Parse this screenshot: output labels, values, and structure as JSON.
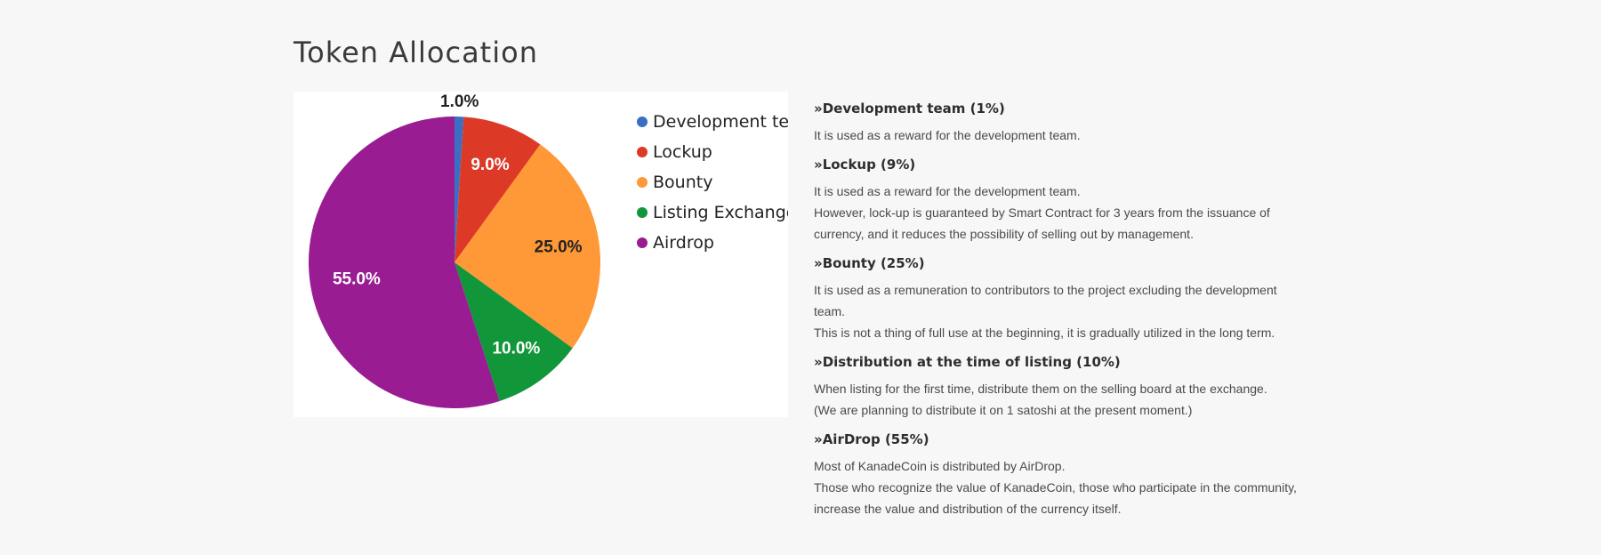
{
  "page": {
    "title": "Token Allocation"
  },
  "chart_data": {
    "type": "pie",
    "title": "",
    "labels": [
      "Development team",
      "Lockup",
      "Bounty",
      "Listing Exchange",
      "Airdrop"
    ],
    "values": [
      1.0,
      9.0,
      25.0,
      10.0,
      55.0
    ],
    "value_labels": [
      "1.0%",
      "9.0%",
      "25.0%",
      "10.0%",
      "55.0%"
    ],
    "colors": [
      "#3a6fc4",
      "#dc3a26",
      "#ff9837",
      "#12963a",
      "#991c92"
    ],
    "label_colors": [
      "#222222",
      "#ffffff",
      "#222222",
      "#ffffff",
      "#ffffff"
    ],
    "legend_position": "right",
    "start": "12 o'clock",
    "direction": "clockwise"
  },
  "sections": [
    {
      "title": "»Development team (1%)",
      "lines": [
        "It is used as a reward for the development team."
      ]
    },
    {
      "title": "»Lockup (9%)",
      "lines": [
        "It is used as a reward for the development team.",
        "However, lock-up is guaranteed by Smart Contract for 3 years from the issuance of",
        "currency, and it reduces the possibility of selling out by management."
      ]
    },
    {
      "title": "»Bounty (25%)",
      "lines": [
        "It is used as a remuneration to contributors to the project excluding the development",
        "team.",
        "This is not a thing of full use at the beginning, it is gradually utilized in the long term."
      ]
    },
    {
      "title": "»Distribution at the time of listing (10%)",
      "lines": [
        "When listing for the first time, distribute them on the selling board at the exchange.",
        "(We are planning to distribute it on 1 satoshi at the present moment.)"
      ]
    },
    {
      "title": "»AirDrop (55%)",
      "lines": [
        "Most of KanadeCoin is distributed by AirDrop.",
        "Those who recognize the value of KanadeCoin, those who participate in the community,",
        "increase the value and distribution of the currency itself."
      ]
    }
  ]
}
